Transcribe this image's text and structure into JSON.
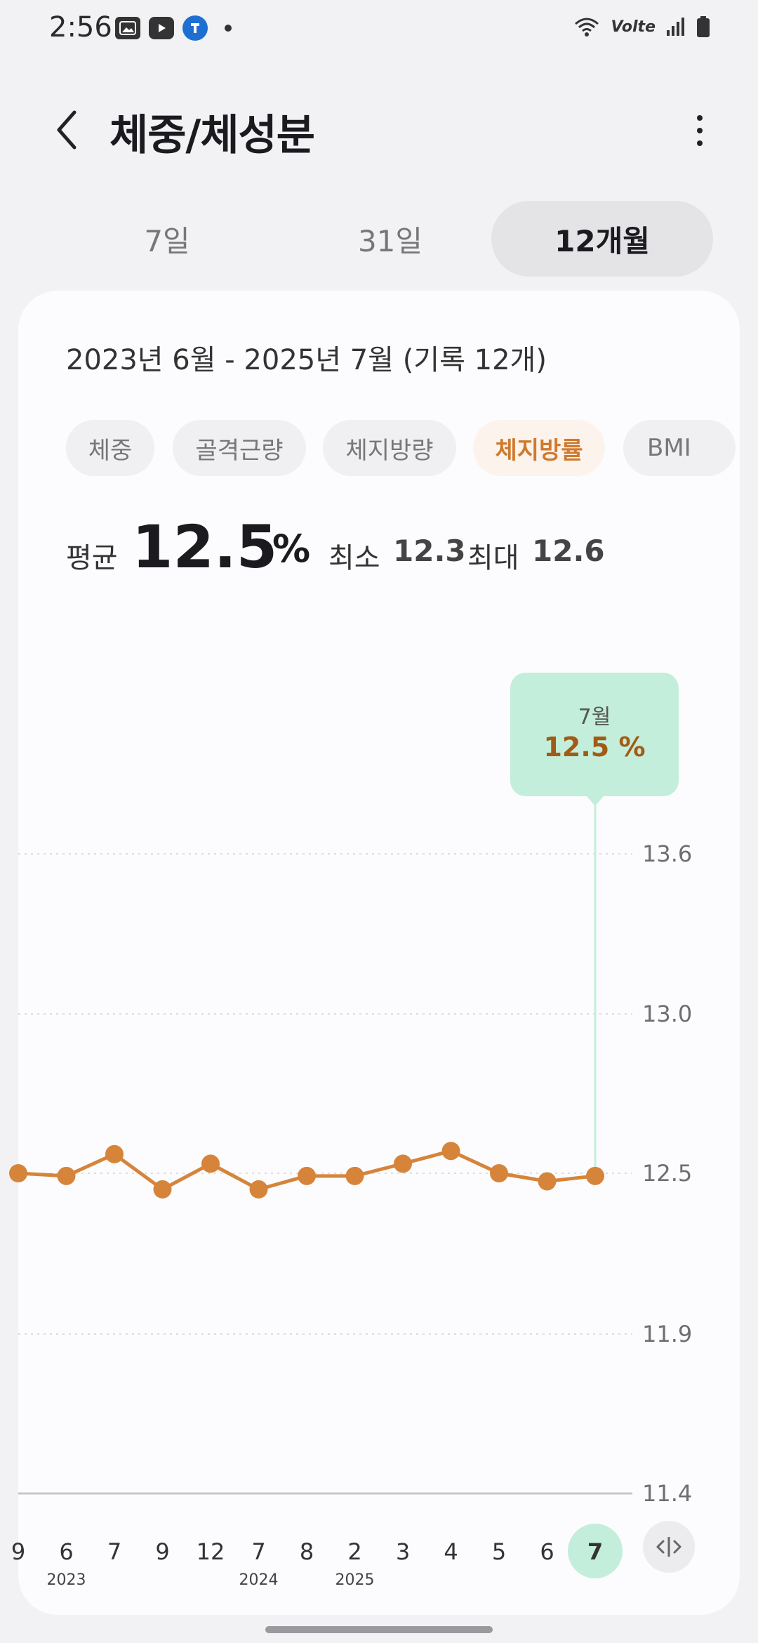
{
  "status": {
    "time": "2:56",
    "left_icons": [
      "gallery-icon",
      "youtube-icon",
      "app-icon"
    ],
    "right_icons": [
      "wifi-icon",
      "volte-icon",
      "signal-icon",
      "battery-icon"
    ],
    "volte_label": "Volte"
  },
  "header": {
    "title": "체중/체성분"
  },
  "tabs": [
    {
      "label": "7일",
      "active": false
    },
    {
      "label": "31일",
      "active": false
    },
    {
      "label": "12개월",
      "active": true
    }
  ],
  "card": {
    "range_label": "2023년 6월 - 2025년 7월 (기록 12개)",
    "chips": [
      {
        "label": "체중",
        "active": false
      },
      {
        "label": "골격근량",
        "active": false
      },
      {
        "label": "체지방량",
        "active": false
      },
      {
        "label": "체지방률",
        "active": true
      },
      {
        "label": "BMI",
        "active": false
      }
    ],
    "stats": {
      "avg_label": "평균",
      "avg_value": "12.5",
      "unit": "%",
      "min_label": "최소",
      "min_value": "12.3",
      "max_label": "최대",
      "max_value": "12.6"
    }
  },
  "chart_data": {
    "type": "line",
    "x": [
      "9",
      "6",
      "7",
      "9",
      "12",
      "7",
      "8",
      "2",
      "3",
      "4",
      "5",
      "6",
      "7"
    ],
    "x_years": [
      {
        "label": "2023",
        "at_index": 1
      },
      {
        "label": "2024",
        "at_index": 5
      },
      {
        "label": "2025",
        "at_index": 7
      }
    ],
    "values": [
      12.5,
      12.49,
      12.56,
      12.44,
      12.53,
      12.44,
      12.49,
      12.49,
      12.53,
      12.57,
      12.5,
      12.47,
      12.49
    ],
    "y_ticks": [
      "13.6",
      "13.0",
      "12.5",
      "11.9",
      "11.4"
    ],
    "ylim": [
      11.4,
      13.6
    ],
    "selected_index": 12,
    "color": "#d6843a",
    "highlight_color": "#c3eedb"
  },
  "tooltip": {
    "month": "7월",
    "value": "12.5 %"
  }
}
